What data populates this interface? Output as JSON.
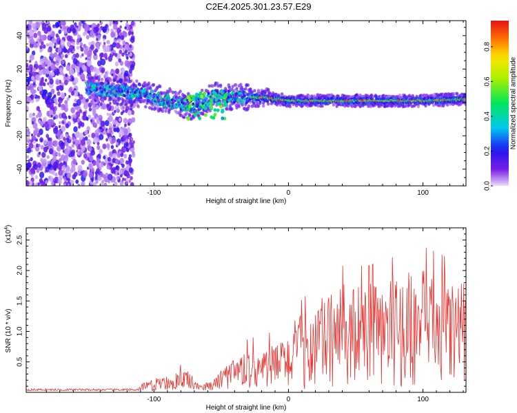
{
  "title": "C2E4.2025.301.23.57.E29",
  "chart_data": [
    {
      "type": "heatmap",
      "xlabel": "Height of straight line (km)",
      "ylabel": "Frequency (Hz)",
      "xlim": [
        -195,
        132
      ],
      "ylim": [
        -50,
        49
      ],
      "xticks": [
        -100,
        0,
        100
      ],
      "yticks": [
        -40,
        -20,
        0,
        20,
        40
      ],
      "colorbar": {
        "label": "Normalized spectral amplitude",
        "range": [
          0,
          0.95
        ],
        "ticks": [
          0.0,
          0.2,
          0.4,
          0.6,
          0.8
        ],
        "tick_labels": [
          "0.0",
          "0.2",
          "0.4",
          "0.6",
          "0.8"
        ]
      },
      "features": {
        "noise_region_x": [
          -195,
          -115
        ],
        "track_center_hz": [
          {
            "x": -145,
            "f": 8
          },
          {
            "x": -110,
            "f": 5
          },
          {
            "x": -90,
            "f": 1
          },
          {
            "x": -70,
            "f": -3
          },
          {
            "x": -55,
            "f": 4
          },
          {
            "x": -35,
            "f": 3
          },
          {
            "x": -20,
            "f": 3
          },
          {
            "x": 0,
            "f": 1
          },
          {
            "x": 50,
            "f": 1
          },
          {
            "x": 100,
            "f": 1
          },
          {
            "x": 132,
            "f": 2
          }
        ]
      }
    },
    {
      "type": "line",
      "xlabel": "Height of straight line (km)",
      "ylabel": "SNR (10 * v/v)",
      "yscale_label": "(x10",
      "yscale_exp": "4",
      "xlim": [
        -195,
        132
      ],
      "ylim": [
        0,
        27000
      ],
      "xticks": [
        -100,
        0,
        100
      ],
      "yticks": [
        5000,
        10000,
        15000,
        20000,
        25000
      ],
      "ytick_labels": [
        "0.5",
        "1.0",
        "1.5",
        "2.0",
        "2.5"
      ],
      "series": [
        {
          "name": "SNR",
          "color": "#e8302c",
          "envelope": [
            {
              "x": -195,
              "y": 400
            },
            {
              "x": -115,
              "y": 500
            },
            {
              "x": -105,
              "y": 1500
            },
            {
              "x": -90,
              "y": 2500
            },
            {
              "x": -75,
              "y": 3000
            },
            {
              "x": -65,
              "y": 800
            },
            {
              "x": -55,
              "y": 2000
            },
            {
              "x": -45,
              "y": 4000
            },
            {
              "x": -30,
              "y": 5500
            },
            {
              "x": -15,
              "y": 6000
            },
            {
              "x": 0,
              "y": 8000
            },
            {
              "x": 20,
              "y": 11000
            },
            {
              "x": 40,
              "y": 13000
            },
            {
              "x": 60,
              "y": 13000
            },
            {
              "x": 80,
              "y": 14000
            },
            {
              "x": 100,
              "y": 15000
            },
            {
              "x": 132,
              "y": 13000
            }
          ]
        }
      ]
    }
  ]
}
